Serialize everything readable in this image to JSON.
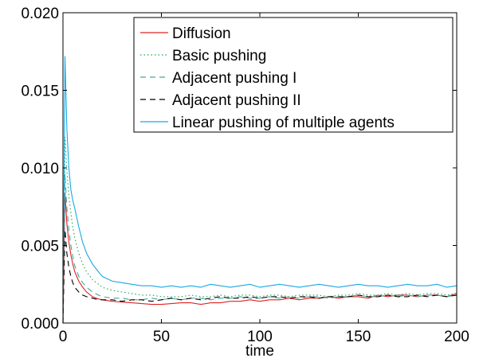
{
  "chart_data": {
    "type": "line",
    "xlabel": "time",
    "ylabel": "",
    "xlim": [
      0,
      200
    ],
    "ylim": [
      0,
      0.02
    ],
    "x_ticks": [
      "0",
      "50",
      "100",
      "150",
      "200"
    ],
    "y_ticks": [
      "0.000",
      "0.005",
      "0.010",
      "0.015",
      "0.020"
    ],
    "grid": false,
    "legend_position": "top-right",
    "x": [
      0,
      1,
      2,
      3,
      4,
      5,
      6,
      8,
      10,
      12,
      15,
      18,
      20,
      25,
      30,
      35,
      40,
      45,
      50,
      55,
      60,
      65,
      70,
      75,
      80,
      85,
      90,
      95,
      100,
      105,
      110,
      115,
      120,
      125,
      130,
      135,
      140,
      145,
      150,
      155,
      160,
      165,
      170,
      175,
      180,
      185,
      190,
      195,
      200
    ],
    "series": [
      {
        "name": "Diffusion",
        "color": "#e02020",
        "dash": "solid",
        "values": [
          0.0,
          0.0084,
          0.0064,
          0.0052,
          0.0044,
          0.0038,
          0.0033,
          0.0027,
          0.0023,
          0.002,
          0.0017,
          0.00155,
          0.0015,
          0.0014,
          0.00135,
          0.0013,
          0.00125,
          0.0012,
          0.0012,
          0.00125,
          0.0013,
          0.0013,
          0.0012,
          0.0013,
          0.0013,
          0.0014,
          0.0014,
          0.0015,
          0.0014,
          0.0015,
          0.0015,
          0.0016,
          0.0015,
          0.0016,
          0.0016,
          0.0017,
          0.0016,
          0.0017,
          0.0017,
          0.0016,
          0.0018,
          0.0017,
          0.0018,
          0.0018,
          0.0017,
          0.0018,
          0.0018,
          0.0017,
          0.0019
        ]
      },
      {
        "name": "Basic pushing",
        "color": "#20a050",
        "dash": "dotted",
        "values": [
          0.0,
          0.012,
          0.0098,
          0.0082,
          0.0071,
          0.0062,
          0.0055,
          0.0045,
          0.0038,
          0.0033,
          0.0028,
          0.0025,
          0.0023,
          0.0021,
          0.002,
          0.0019,
          0.0018,
          0.0018,
          0.0017,
          0.0017,
          0.0017,
          0.0018,
          0.0017,
          0.0017,
          0.0018,
          0.0017,
          0.0018,
          0.0018,
          0.0017,
          0.0018,
          0.0018,
          0.0017,
          0.0018,
          0.0018,
          0.0018,
          0.0017,
          0.0018,
          0.0018,
          0.0019,
          0.0018,
          0.0018,
          0.0019,
          0.0018,
          0.0019,
          0.0018,
          0.0019,
          0.0019,
          0.0018,
          0.0019
        ]
      },
      {
        "name": "Adjacent pushing I",
        "color": "#40a8a0",
        "dash": "dashed",
        "values": [
          0.0,
          0.0096,
          0.0074,
          0.006,
          0.005,
          0.0043,
          0.0037,
          0.003,
          0.0026,
          0.0023,
          0.002,
          0.0018,
          0.0017,
          0.0016,
          0.0016,
          0.0015,
          0.0015,
          0.0016,
          0.0015,
          0.0016,
          0.0015,
          0.0016,
          0.0016,
          0.0015,
          0.0016,
          0.0016,
          0.0017,
          0.0016,
          0.0016,
          0.0017,
          0.0016,
          0.0017,
          0.0016,
          0.0017,
          0.0017,
          0.0016,
          0.0017,
          0.0017,
          0.0018,
          0.0017,
          0.0017,
          0.0018,
          0.0017,
          0.0018,
          0.0017,
          0.0018,
          0.0018,
          0.0017,
          0.0018
        ]
      },
      {
        "name": "Adjacent pushing II",
        "color": "#000000",
        "dash": "dashed",
        "values": [
          0.0,
          0.006,
          0.0045,
          0.0036,
          0.003,
          0.0026,
          0.0023,
          0.002,
          0.0018,
          0.0017,
          0.0016,
          0.0015,
          0.0015,
          0.0015,
          0.0014,
          0.0015,
          0.0015,
          0.0014,
          0.0015,
          0.0016,
          0.0015,
          0.0016,
          0.0015,
          0.0016,
          0.0017,
          0.0016,
          0.0016,
          0.0017,
          0.0016,
          0.0017,
          0.0017,
          0.0016,
          0.0017,
          0.0017,
          0.0016,
          0.0017,
          0.0017,
          0.0017,
          0.0018,
          0.0017,
          0.0017,
          0.0018,
          0.0017,
          0.0017,
          0.0018,
          0.0017,
          0.0018,
          0.0017,
          0.0018
        ]
      },
      {
        "name": "Linear pushing of multiple agents",
        "color": "#1aa8e0",
        "dash": "solid",
        "values": [
          0.0,
          0.0172,
          0.0125,
          0.01,
          0.0086,
          0.0079,
          0.0074,
          0.0062,
          0.0052,
          0.0045,
          0.0038,
          0.0033,
          0.003,
          0.0027,
          0.0026,
          0.0025,
          0.0024,
          0.0024,
          0.0023,
          0.0024,
          0.0023,
          0.0024,
          0.0023,
          0.0025,
          0.0024,
          0.0023,
          0.0024,
          0.0025,
          0.0023,
          0.0024,
          0.0025,
          0.0024,
          0.0023,
          0.0024,
          0.0025,
          0.0024,
          0.0023,
          0.0024,
          0.0025,
          0.0024,
          0.0024,
          0.0023,
          0.0024,
          0.0025,
          0.0024,
          0.0024,
          0.0025,
          0.0023,
          0.0024
        ]
      }
    ]
  }
}
